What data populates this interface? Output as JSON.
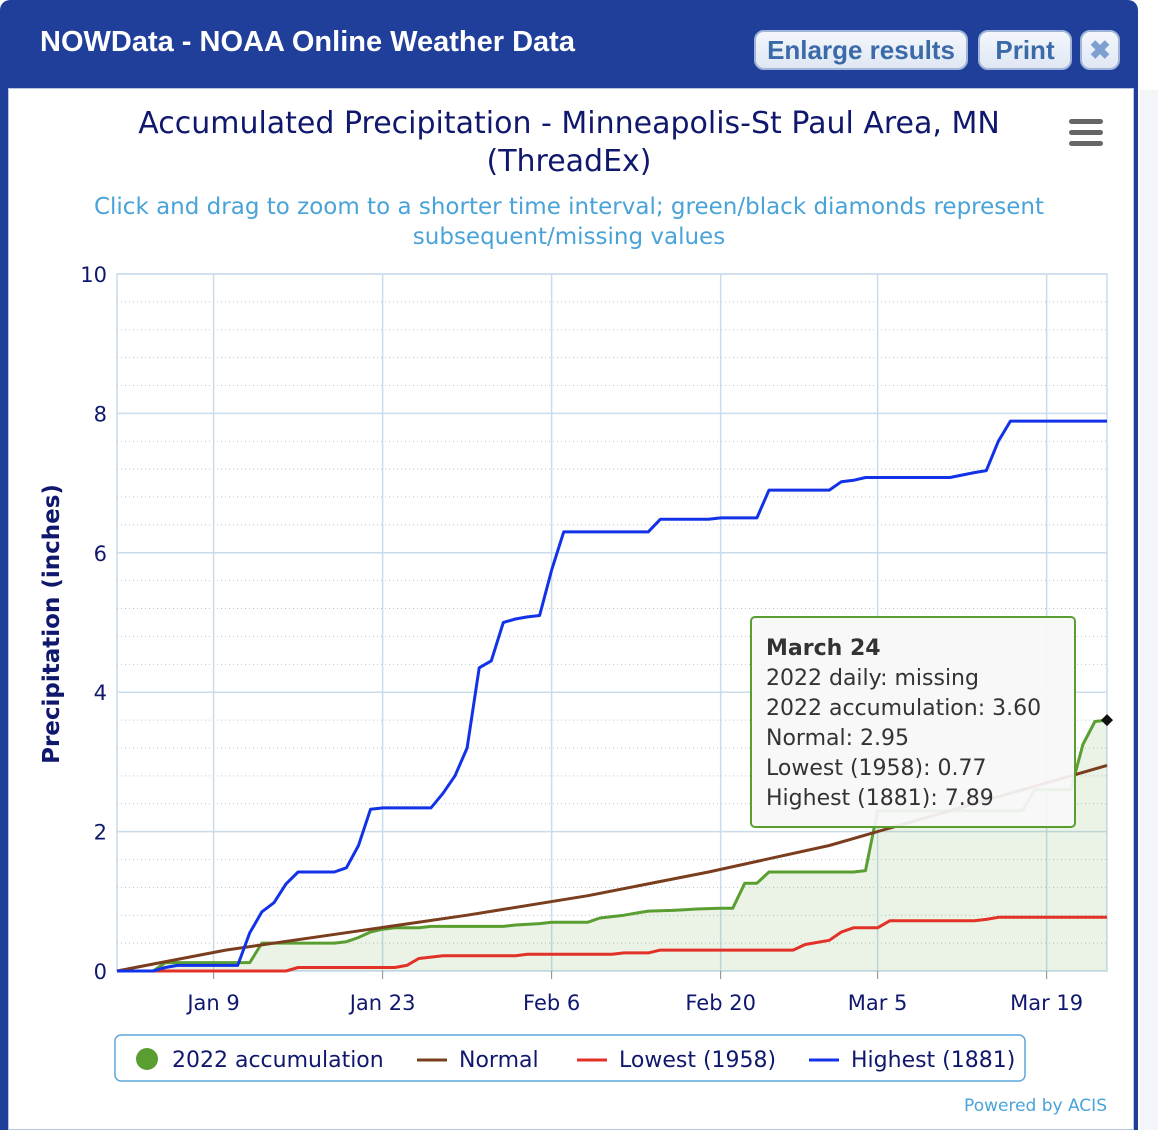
{
  "window": {
    "title": "NOWData - NOAA Online Weather Data",
    "enlarge_label": "Enlarge results",
    "print_label": "Print",
    "close_label": "✖"
  },
  "chart": {
    "title_line1": "Accumulated Precipitation - Minneapolis-St Paul Area, MN",
    "title_line2": "(ThreadEx)",
    "subtitle_line1": "Click and drag to zoom to a shorter time interval; green/black diamonds represent",
    "subtitle_line2": "subsequent/missing values",
    "credit": "Powered by ACIS"
  },
  "tooltip": {
    "date": "March 24",
    "line1": "2022 daily: missing",
    "line2": "2022 accumulation: 3.60",
    "line3": "Normal: 2.95",
    "line4": "Lowest (1958): 0.77",
    "line5": "Highest (1881): 7.89"
  },
  "colors": {
    "accumulation": "#5a9e32",
    "normal": "#7a3e1e",
    "lowest": "#e23127",
    "highest": "#1232e8",
    "title": "#10186e",
    "subtitle": "#4aa3d8",
    "grid": "#c9dcec"
  },
  "chart_data": {
    "type": "line",
    "title": "Accumulated Precipitation - Minneapolis-St Paul Area, MN (ThreadEx)",
    "ylabel": "Precipitation (inches)",
    "xlabel": "",
    "ylim": [
      0,
      10
    ],
    "yticks": [
      "0",
      "2",
      "4",
      "6",
      "8",
      "10"
    ],
    "xticks": [
      {
        "label": "Jan 9",
        "day": 9
      },
      {
        "label": "Jan 23",
        "day": 23
      },
      {
        "label": "Feb 6",
        "day": 37
      },
      {
        "label": "Feb 20",
        "day": 51
      },
      {
        "label": "Mar 5",
        "day": 64
      },
      {
        "label": "Mar 19",
        "day": 78
      }
    ],
    "x_range_days": [
      1,
      83
    ],
    "legend_position": "bottom",
    "series": [
      {
        "name": "2022 accumulation",
        "area": true,
        "points": [
          [
            1,
            0
          ],
          [
            4,
            0
          ],
          [
            5,
            0.12
          ],
          [
            9,
            0.12
          ],
          [
            12,
            0.12
          ],
          [
            13,
            0.4
          ],
          [
            19,
            0.4
          ],
          [
            20,
            0.42
          ],
          [
            21,
            0.48
          ],
          [
            22,
            0.56
          ],
          [
            23,
            0.6
          ],
          [
            24,
            0.62
          ],
          [
            26,
            0.62
          ],
          [
            27,
            0.64
          ],
          [
            33,
            0.64
          ],
          [
            34,
            0.66
          ],
          [
            36,
            0.68
          ],
          [
            37,
            0.7
          ],
          [
            40,
            0.7
          ],
          [
            41,
            0.76
          ],
          [
            43,
            0.8
          ],
          [
            44,
            0.83
          ],
          [
            45,
            0.86
          ],
          [
            47,
            0.87
          ],
          [
            48,
            0.88
          ],
          [
            49,
            0.89
          ],
          [
            51,
            0.9
          ],
          [
            52,
            0.9
          ],
          [
            53,
            1.26
          ],
          [
            54,
            1.26
          ],
          [
            55,
            1.42
          ],
          [
            60,
            1.42
          ],
          [
            62,
            1.42
          ],
          [
            63,
            1.44
          ],
          [
            64,
            2.3
          ],
          [
            75,
            2.3
          ],
          [
            76,
            2.3
          ],
          [
            77,
            2.6
          ],
          [
            80,
            2.6
          ],
          [
            81,
            3.25
          ],
          [
            82,
            3.58
          ],
          [
            83,
            3.6
          ]
        ]
      },
      {
        "name": "Normal",
        "points": [
          [
            1,
            0
          ],
          [
            10,
            0.3
          ],
          [
            20,
            0.55
          ],
          [
            30,
            0.8
          ],
          [
            40,
            1.08
          ],
          [
            50,
            1.42
          ],
          [
            60,
            1.8
          ],
          [
            70,
            2.3
          ],
          [
            83,
            2.95
          ]
        ]
      },
      {
        "name": "Lowest (1958)",
        "points": [
          [
            1,
            0
          ],
          [
            5,
            0
          ],
          [
            15,
            0
          ],
          [
            16,
            0.05
          ],
          [
            24,
            0.05
          ],
          [
            25,
            0.08
          ],
          [
            26,
            0.18
          ],
          [
            27,
            0.2
          ],
          [
            28,
            0.22
          ],
          [
            34,
            0.22
          ],
          [
            35,
            0.24
          ],
          [
            42,
            0.24
          ],
          [
            43,
            0.26
          ],
          [
            45,
            0.26
          ],
          [
            46,
            0.3
          ],
          [
            56,
            0.3
          ],
          [
            57,
            0.3
          ],
          [
            58,
            0.38
          ],
          [
            60,
            0.44
          ],
          [
            61,
            0.56
          ],
          [
            62,
            0.62
          ],
          [
            64,
            0.62
          ],
          [
            65,
            0.72
          ],
          [
            72,
            0.72
          ],
          [
            73,
            0.74
          ],
          [
            74,
            0.77
          ],
          [
            83,
            0.77
          ]
        ]
      },
      {
        "name": "Highest (1881)",
        "points": [
          [
            1,
            0
          ],
          [
            4,
            0
          ],
          [
            5,
            0.05
          ],
          [
            6,
            0.08
          ],
          [
            10,
            0.08
          ],
          [
            11,
            0.08
          ],
          [
            12,
            0.55
          ],
          [
            13,
            0.85
          ],
          [
            14,
            0.98
          ],
          [
            15,
            1.25
          ],
          [
            16,
            1.42
          ],
          [
            19,
            1.42
          ],
          [
            20,
            1.48
          ],
          [
            21,
            1.8
          ],
          [
            22,
            2.32
          ],
          [
            23,
            2.34
          ],
          [
            27,
            2.34
          ],
          [
            28,
            2.55
          ],
          [
            29,
            2.8
          ],
          [
            30,
            3.2
          ],
          [
            31,
            4.35
          ],
          [
            32,
            4.45
          ],
          [
            33,
            5
          ],
          [
            34,
            5.05
          ],
          [
            35,
            5.08
          ],
          [
            36,
            5.1
          ],
          [
            37,
            5.75
          ],
          [
            38,
            6.3
          ],
          [
            42,
            6.3
          ],
          [
            45,
            6.3
          ],
          [
            46,
            6.48
          ],
          [
            50,
            6.48
          ],
          [
            51,
            6.5
          ],
          [
            54,
            6.5
          ],
          [
            55,
            6.9
          ],
          [
            60,
            6.9
          ],
          [
            61,
            7.02
          ],
          [
            62,
            7.04
          ],
          [
            63,
            7.08
          ],
          [
            70,
            7.08
          ],
          [
            72,
            7.15
          ],
          [
            73,
            7.18
          ],
          [
            74,
            7.6
          ],
          [
            75,
            7.89
          ],
          [
            83,
            7.89
          ]
        ]
      }
    ]
  }
}
